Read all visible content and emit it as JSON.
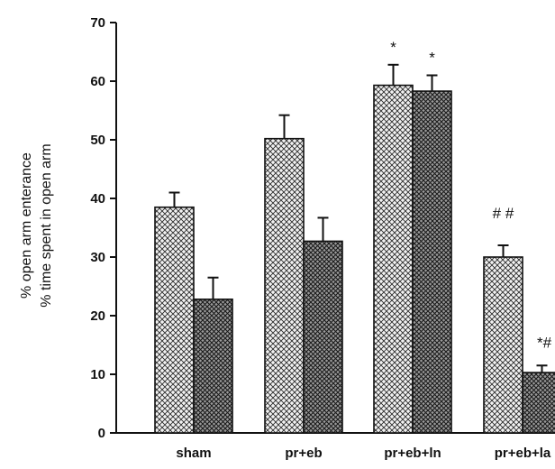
{
  "chart_data": {
    "type": "bar",
    "categories": [
      "sham",
      "pr+eb",
      "pr+eb+ln",
      "pr+eb+la"
    ],
    "series": [
      {
        "values": [
          38.5,
          50.2,
          59.3,
          30.0
        ],
        "errors": [
          2.5,
          4.0,
          3.5,
          2.0
        ],
        "pattern": "light-crosshatch"
      },
      {
        "values": [
          22.8,
          32.7,
          58.3,
          10.3
        ],
        "errors": [
          3.7,
          4.0,
          2.7,
          1.2
        ],
        "pattern": "dark-crosshatch"
      }
    ],
    "ylabel_lines": [
      "% open arm enterance",
      "% time spent in open arm"
    ],
    "yticks": [
      0,
      10,
      20,
      30,
      40,
      50,
      60,
      70
    ],
    "ylim": [
      0,
      70
    ],
    "annotations": [
      {
        "category": "pr+eb+ln",
        "series": 0,
        "text": "*"
      },
      {
        "category": "pr+eb+ln",
        "series": 1,
        "text": "*"
      },
      {
        "category": "pr+eb+la",
        "series": 0,
        "text": "# #"
      },
      {
        "category": "pr+eb+la",
        "series": 1,
        "text": "*#"
      }
    ],
    "grid": false,
    "legend": "none"
  }
}
